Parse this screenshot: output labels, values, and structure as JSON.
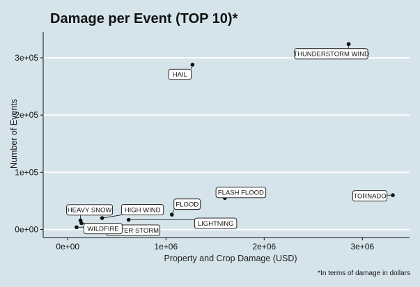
{
  "chart_data": {
    "type": "scatter",
    "title": "Damage per Event (TOP 10)*",
    "xlabel": "Property and Crop Damage (USD)",
    "ylabel": "Number of Events",
    "caption": "*In terms of damage in dollars",
    "x_tick_labels": [
      "0e+00",
      "1e+06",
      "2e+06",
      "3e+06"
    ],
    "y_tick_labels": [
      "0e+00",
      "1e+05",
      "2e+05",
      "3e+05"
    ],
    "x_ticks": [
      0,
      1000000,
      2000000,
      3000000
    ],
    "y_ticks": [
      0,
      100000,
      200000,
      300000
    ],
    "xlim": [
      -250000,
      3480000
    ],
    "ylim": [
      -14000,
      345000
    ],
    "grid": "horizontal",
    "points": [
      {
        "label": "THUNDERSTORM WIND",
        "x": 2860000,
        "y": 324000
      },
      {
        "label": "HAIL",
        "x": 1270000,
        "y": 288000
      },
      {
        "label": "FLASH FLOOD",
        "x": 1600000,
        "y": 55000
      },
      {
        "label": "TORNADO",
        "x": 3310000,
        "y": 60000
      },
      {
        "label": "FLOOD",
        "x": 1060000,
        "y": 26000
      },
      {
        "label": "HIGH WIND",
        "x": 350000,
        "y": 20000
      },
      {
        "label": "HEAVY SNOW",
        "x": 130000,
        "y": 16000
      },
      {
        "label": "LIGHTNING",
        "x": 620000,
        "y": 17000
      },
      {
        "label": "WINTER STORM",
        "x": 140000,
        "y": 11000
      },
      {
        "label": "WILDFIRE",
        "x": 90000,
        "y": 4000
      }
    ]
  }
}
